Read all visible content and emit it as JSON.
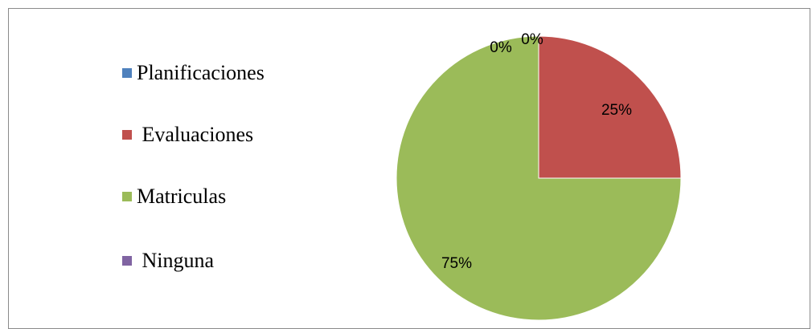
{
  "chart_data": {
    "type": "pie",
    "title": "",
    "categories": [
      "Planificaciones",
      " Evaluaciones",
      "Matriculas",
      " Ninguna"
    ],
    "values": [
      0,
      25,
      75,
      0
    ],
    "data_labels": [
      "0%",
      "25%",
      "75%",
      "0%"
    ],
    "colors": [
      "#4F81BD",
      "#C0504D",
      "#9BBB59",
      "#8064A2"
    ],
    "legend_position": "left"
  },
  "legend": {
    "items": [
      {
        "label": "Planificaciones",
        "color": "#4F81BD"
      },
      {
        "label": " Evaluaciones",
        "color": "#C0504D"
      },
      {
        "label": "Matriculas",
        "color": "#9BBB59"
      },
      {
        "label": " Ninguna",
        "color": "#8064A2"
      }
    ]
  }
}
